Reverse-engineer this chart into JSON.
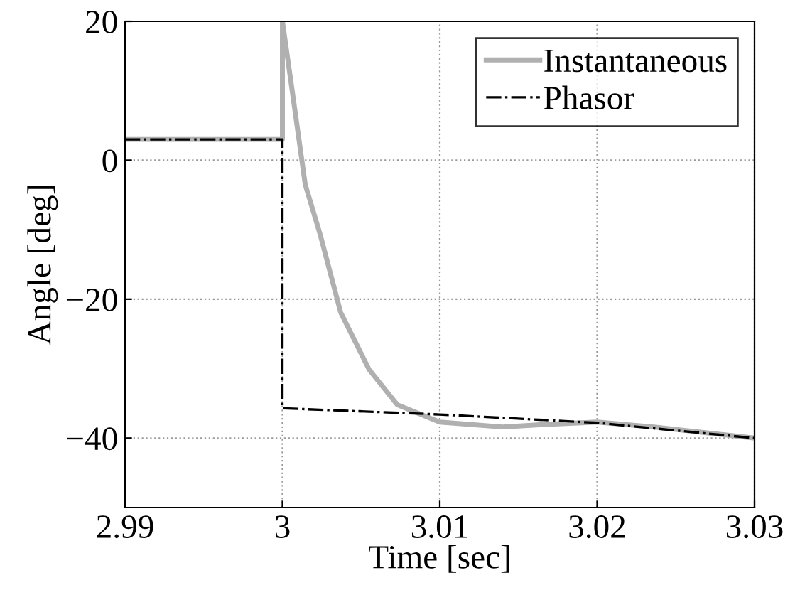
{
  "chart_data": {
    "type": "line",
    "xlabel": "Time [sec]",
    "ylabel": "Angle [deg]",
    "xlim": [
      2.99,
      3.03
    ],
    "ylim": [
      -50,
      20
    ],
    "xticks": [
      2.99,
      3,
      3.01,
      3.02,
      3.03
    ],
    "yticks": [
      -40,
      -20,
      0,
      20
    ],
    "grid": true,
    "legend": "top right",
    "series": [
      {
        "name": "Instantaneous",
        "color": "#b0b0b0",
        "line_style": "solid",
        "x": [
          2.99,
          3.0,
          3.0,
          3.0005,
          3.00145,
          3.0024,
          3.0037,
          3.0055,
          3.0073,
          3.01,
          3.014,
          3.017,
          3.02,
          3.0236,
          3.03
        ],
        "values": [
          3,
          3,
          20,
          12,
          -3.5,
          -10.7,
          -21.9,
          -30.1,
          -35.2,
          -37.7,
          -38.4,
          -38,
          -37.7,
          -38.4,
          -40
        ]
      },
      {
        "name": "Phasor",
        "color": "#000000",
        "line_style": "dashdot",
        "x": [
          2.99,
          3.0,
          3.0,
          3.01,
          3.02,
          3.03
        ],
        "values": [
          3,
          3,
          -35.7,
          -36.6,
          -37.8,
          -40
        ]
      }
    ]
  }
}
